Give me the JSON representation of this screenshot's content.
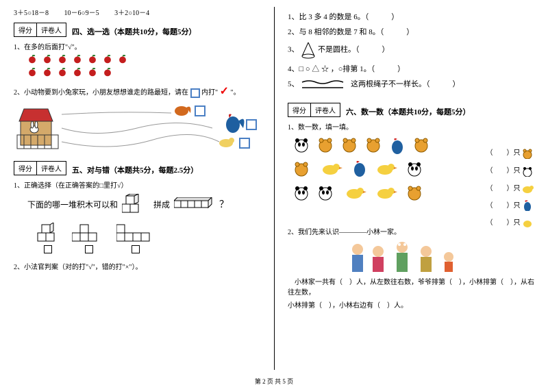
{
  "equations": {
    "e1": "3＋5○18－8",
    "e2": "10－6○9－5",
    "e3": "3＋2○10－4"
  },
  "left": {
    "score_label1": "得分",
    "score_label2": "评卷人",
    "sec4_title": "四、选一选（本题共10分，每题5分）",
    "q4_1": "1、在多的后面打\"√\"。",
    "q4_2_a": "2、小动物要到小兔家玩，小朋友想想谁走的路最短，请在",
    "q4_2_b": "内打\"",
    "q4_2_c": "\"。",
    "sec5_title": "五、对与错（本题共5分，每题2.5分）",
    "q5_1": "1、正确选择（在正确答案的□里打√）",
    "q5_1_text": "下面的哪一堆积木可以和",
    "q5_1_text2": "拼成",
    "q5_1_qmark": "？",
    "q5_2": "2、小法官判案（对的打\"√\"，错的打\"×\"）。"
  },
  "right": {
    "j1": "1、比 3 多 4 的数是 6。（　　　）",
    "j2": "2、与 8 相邻的数是 7 和 8。（　　　）",
    "j3_a": "3、",
    "j3_b": "不是圆柱。（　　　）",
    "j4_a": "4、□ ○ △ ☆ ，○排第 1。（　　　）",
    "j5_a": "5、",
    "j5_b": "这两根绳子不一样长。（　　　）",
    "sec6_title": "六、数一数（本题共10分，每题5分）",
    "q6_1": "1、数一数，填一填。",
    "count_unit": "（　　）只",
    "q6_2": "2、我们先来认识————小林一家。",
    "q6_2_text1": "小林家一共有（　）人，从左数往右数，爷爷排第（　），小林排第（　），从右往左数，",
    "q6_2_text2": "小林排第（　），小林右边有（　）人。"
  },
  "footer": "第 2 页 共 5 页",
  "colors": {
    "apple_red": "#c41e1e",
    "apple_leaf": "#2a7a2a",
    "checkbox_blue": "#4a7fc4",
    "check_red": "#e00000"
  }
}
